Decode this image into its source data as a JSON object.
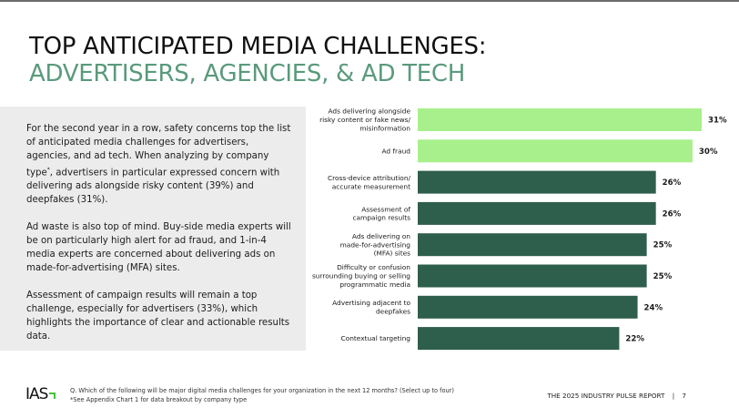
{
  "header": {
    "title_line1": "TOP ANTICIPATED MEDIA CHALLENGES:",
    "title_line2": "ADVERTISERS, AGENCIES, & AD TECH"
  },
  "panel": {
    "p1_before_sup": "For the second year in a row, safety concerns top the list of anticipated media challenges for advertisers, agencies, and ad tech. When analyzing by company type",
    "p1_sup": "*",
    "p1_after_sup": ", advertisers in particular expressed concern with delivering ads alongside risky content (39%) and deepfakes (31%).",
    "p2": "Ad waste is also top of mind. Buy-side media experts will be on particularly high alert for ad fraud, and 1-in-4 media experts are concerned about delivering ads on made-for-advertising (MFA) sites.",
    "p3": "Assessment of campaign results will remain a top challenge, especially for advertisers (33%), which highlights the importance of clear and actionable results data."
  },
  "colors": {
    "highlight_bar": "#a8f08c",
    "standard_bar": "#2e5e4c",
    "title_accent": "#5a9a7c",
    "panel_bg": "#ececec",
    "logo_accent": "#46c23a"
  },
  "chart_data": {
    "type": "bar",
    "orientation": "horizontal",
    "title": "",
    "xlabel": "",
    "ylabel": "",
    "xlim": [
      0,
      31
    ],
    "grid": false,
    "legend": "none",
    "value_suffix": "%",
    "categories": [
      [
        "Ads delivering alongside",
        "risky content or fake news/",
        "misinformation"
      ],
      [
        "Ad fraud"
      ],
      [
        "Cross-device attribution/",
        "accurate measurement"
      ],
      [
        "Assessment of",
        "campaign results"
      ],
      [
        "Ads delivering on",
        "made-for-advertising",
        "(MFA) sites"
      ],
      [
        "Difficulty or confusion",
        "surrounding buying or selling",
        "programmatic media"
      ],
      [
        "Advertising adjacent to",
        "deepfakes"
      ],
      [
        "Contextual targeting"
      ]
    ],
    "values": [
      31,
      30,
      26,
      26,
      25,
      25,
      24,
      22
    ],
    "labels": [
      "31%",
      "30%",
      "26%",
      "26%",
      "25%",
      "25%",
      "24%",
      "22%"
    ],
    "highlight": [
      true,
      true,
      false,
      false,
      false,
      false,
      false,
      false
    ]
  },
  "footer": {
    "logo": "IAS",
    "question": "Q. Which of the following will be major digital media challenges for your organization in the next 12 months? (Select up to four)",
    "note": "*See Appendix Chart 1 for data breakout by company type",
    "report": "THE 2025 INDUSTRY PULSE REPORT",
    "separator": "|",
    "page_number": "7"
  }
}
